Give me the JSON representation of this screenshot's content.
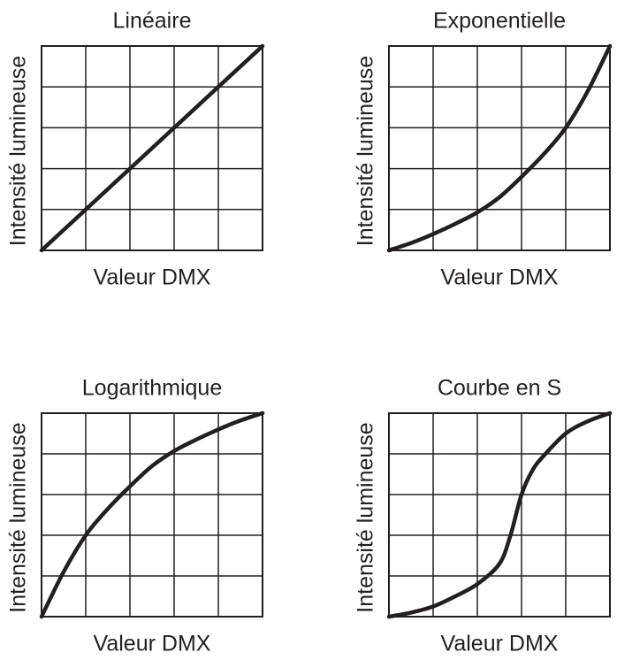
{
  "chart_data": [
    {
      "type": "line",
      "title": "Linéaire",
      "xlabel": "Valeur DMX",
      "ylabel": "Intensité lumineuse",
      "x": [
        0,
        0.5,
        1,
        1.5,
        2,
        2.5,
        3,
        3.5,
        4,
        4.5,
        5
      ],
      "values": [
        0,
        0.5,
        1,
        1.5,
        2,
        2.5,
        3,
        3.5,
        4,
        4.5,
        5
      ],
      "color": "#231f20",
      "xlim": [
        0,
        5
      ],
      "ylim": [
        0,
        5
      ],
      "xticks": [
        0,
        1,
        2,
        3,
        4,
        5
      ],
      "yticks": [
        0,
        1,
        2,
        3,
        4,
        5
      ],
      "grid": true
    },
    {
      "type": "line",
      "title": "Exponentielle",
      "xlabel": "Valeur DMX",
      "ylabel": "Intensité lumineuse",
      "x": [
        0,
        0.5,
        1,
        1.5,
        2,
        2.5,
        3,
        3.5,
        4,
        4.5,
        5
      ],
      "values": [
        0,
        0.18,
        0.4,
        0.65,
        0.93,
        1.3,
        1.8,
        2.35,
        3,
        3.9,
        5
      ],
      "color": "#231f20",
      "xlim": [
        0,
        5
      ],
      "ylim": [
        0,
        5
      ],
      "xticks": [
        0,
        1,
        2,
        3,
        4,
        5
      ],
      "yticks": [
        0,
        1,
        2,
        3,
        4,
        5
      ],
      "grid": true
    },
    {
      "type": "line",
      "title": "Logarithmique",
      "xlabel": "Valeur DMX",
      "ylabel": "Intensité lumineuse",
      "x": [
        0,
        0.5,
        1,
        1.5,
        2,
        2.5,
        3,
        3.5,
        4,
        4.5,
        5
      ],
      "values": [
        0,
        1.1,
        2,
        2.65,
        3.2,
        3.7,
        4.07,
        4.35,
        4.6,
        4.82,
        5
      ],
      "color": "#231f20",
      "xlim": [
        0,
        5
      ],
      "ylim": [
        0,
        5
      ],
      "xticks": [
        0,
        1,
        2,
        3,
        4,
        5
      ],
      "yticks": [
        0,
        1,
        2,
        3,
        4,
        5
      ],
      "grid": true
    },
    {
      "type": "line",
      "title": "Courbe en S",
      "xlabel": "Valeur DMX",
      "ylabel": "Intensité lumineuse",
      "x": [
        0,
        0.5,
        1,
        1.5,
        2,
        2.5,
        2.75,
        3,
        3.25,
        3.5,
        4,
        4.5,
        5
      ],
      "values": [
        0,
        0.1,
        0.25,
        0.5,
        0.8,
        1.3,
        2,
        3,
        3.6,
        3.95,
        4.5,
        4.8,
        5
      ],
      "color": "#231f20",
      "xlim": [
        0,
        5
      ],
      "ylim": [
        0,
        5
      ],
      "xticks": [
        0,
        1,
        2,
        3,
        4,
        5
      ],
      "yticks": [
        0,
        1,
        2,
        3,
        4,
        5
      ],
      "grid": true
    }
  ]
}
